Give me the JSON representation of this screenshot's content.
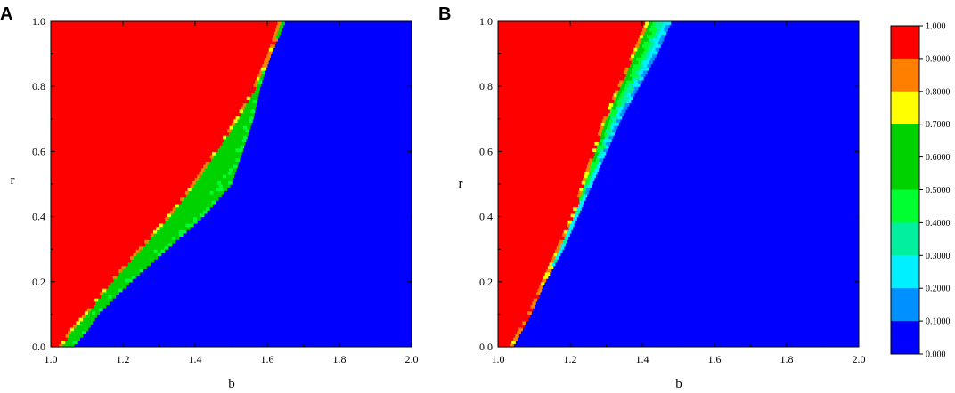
{
  "chart_data": [
    {
      "type": "heatmap",
      "panel_label": "A",
      "xlabel": "b",
      "ylabel": "r",
      "xlim": [
        1.0,
        2.0
      ],
      "ylim": [
        0.0,
        1.0
      ],
      "x_ticks": [
        "1.0",
        "1.2",
        "1.4",
        "1.6",
        "1.8",
        "2.0"
      ],
      "y_ticks": [
        "0.0",
        "0.2",
        "0.4",
        "0.6",
        "0.8",
        "1.0"
      ],
      "boundary": {
        "r": [
          0.0,
          0.05,
          0.1,
          0.2,
          0.3,
          0.4,
          0.5,
          0.6,
          0.7,
          0.8,
          0.9,
          1.0
        ],
        "red_edge_b": [
          1.02,
          1.05,
          1.09,
          1.16,
          1.24,
          1.32,
          1.39,
          1.45,
          1.51,
          1.56,
          1.6,
          1.63
        ],
        "mixed_edge_b": [
          1.06,
          1.1,
          1.13,
          1.22,
          1.32,
          1.42,
          1.5,
          1.53,
          1.56,
          1.58,
          1.61,
          1.65
        ]
      },
      "mixed_fraction_range": [
        0.5,
        0.65
      ]
    },
    {
      "type": "heatmap",
      "panel_label": "B",
      "xlabel": "b",
      "ylabel": "r",
      "xlim": [
        1.0,
        2.0
      ],
      "ylim": [
        0.0,
        1.0
      ],
      "x_ticks": [
        "1.0",
        "1.2",
        "1.4",
        "1.6",
        "1.8",
        "2.0"
      ],
      "y_ticks": [
        "0.0",
        "0.2",
        "0.4",
        "0.6",
        "0.8",
        "1.0"
      ],
      "boundary": {
        "r": [
          0.0,
          0.1,
          0.2,
          0.3,
          0.4,
          0.5,
          0.6,
          0.7,
          0.8,
          0.9,
          1.0
        ],
        "red_edge_b": [
          1.03,
          1.08,
          1.12,
          1.16,
          1.2,
          1.23,
          1.26,
          1.29,
          1.33,
          1.37,
          1.41
        ],
        "mixed_edge_b": [
          1.04,
          1.09,
          1.13,
          1.18,
          1.22,
          1.26,
          1.3,
          1.34,
          1.39,
          1.44,
          1.48
        ]
      },
      "mixed_fraction_range": [
        0.15,
        0.7
      ]
    }
  ],
  "colorbar": {
    "labels": [
      "1.000",
      "0.9000",
      "0.8000",
      "0.7000",
      "0.6000",
      "0.5000",
      "0.4000",
      "0.3000",
      "0.2000",
      "0.1000",
      "0.000"
    ],
    "colors": [
      "#ff0000",
      "#ff8000",
      "#ffff00",
      "#00d200",
      "#00ff30",
      "#00f0a0",
      "#00f0ff",
      "#0090ff",
      "#0000ff"
    ],
    "color_bounds": [
      1.0,
      0.9,
      0.8,
      0.7,
      0.5,
      0.4,
      0.3,
      0.2,
      0.1,
      0.0
    ]
  },
  "colors": {
    "low": "#0000ff",
    "high": "#ff0000"
  }
}
